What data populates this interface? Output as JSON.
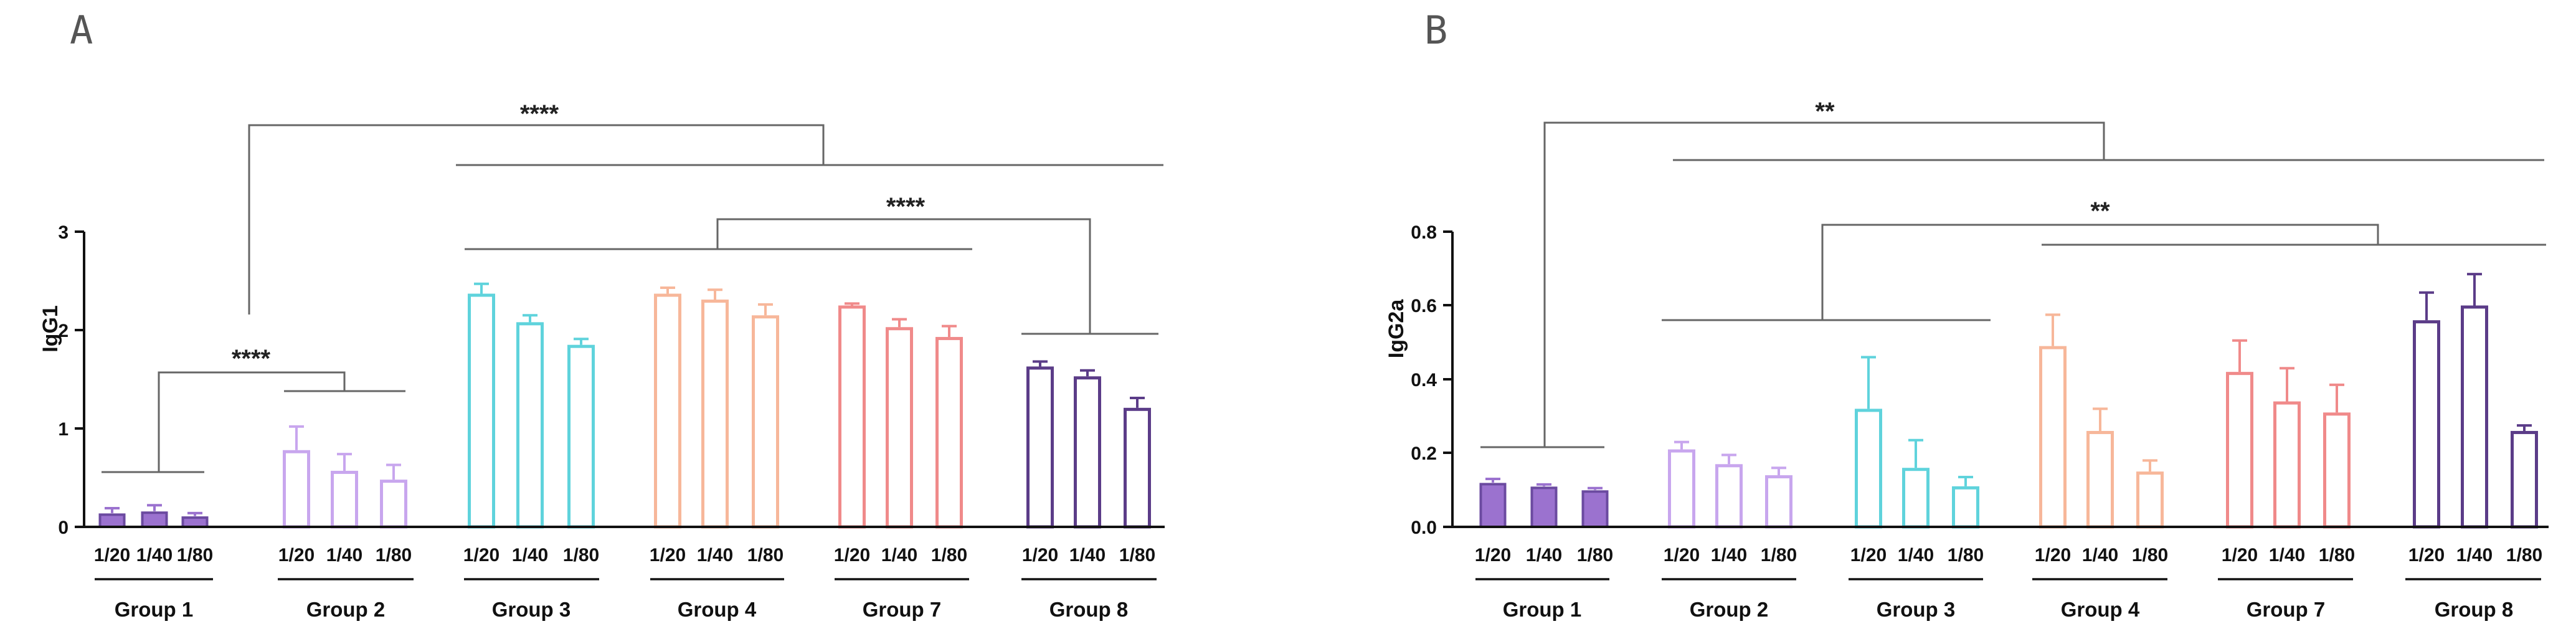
{
  "colors": {
    "group1": "#9b72cf",
    "group2": "#c8a6ee",
    "group3": "#5fd3dc",
    "group4": "#f7b79a",
    "group7": "#f08a8a",
    "group8": "#5b3c88"
  },
  "chart_data": [
    {
      "type": "bar",
      "panel": "A",
      "title": "",
      "xlabel": "",
      "ylabel": "IgG1",
      "ylim": [
        0,
        3
      ],
      "yticks": [
        "0",
        "1",
        "2",
        "3"
      ],
      "dilutions": [
        "1/20",
        "1/40",
        "1/80"
      ],
      "groups": [
        {
          "name": "Group 1",
          "color_key": "group1",
          "filled": true,
          "values": [
            0.14,
            0.16,
            0.11
          ],
          "errors": [
            0.05,
            0.06,
            0.03
          ]
        },
        {
          "name": "Group 2",
          "color_key": "group2",
          "filled": false,
          "values": [
            0.78,
            0.57,
            0.48
          ],
          "errors": [
            0.24,
            0.17,
            0.15
          ]
        },
        {
          "name": "Group 3",
          "color_key": "group3",
          "filled": false,
          "values": [
            2.37,
            2.08,
            1.85
          ],
          "errors": [
            0.1,
            0.07,
            0.06
          ]
        },
        {
          "name": "Group 4",
          "color_key": "group4",
          "filled": false,
          "values": [
            2.37,
            2.31,
            2.15
          ],
          "errors": [
            0.06,
            0.1,
            0.11
          ]
        },
        {
          "name": "Group 7",
          "color_key": "group7",
          "filled": false,
          "values": [
            2.25,
            2.03,
            1.93
          ],
          "errors": [
            0.02,
            0.08,
            0.11
          ]
        },
        {
          "name": "Group 8",
          "color_key": "group8",
          "filled": false,
          "values": [
            1.63,
            1.53,
            1.21
          ],
          "errors": [
            0.05,
            0.06,
            0.1
          ]
        }
      ],
      "annotations": [
        "****",
        "****",
        "****"
      ]
    },
    {
      "type": "bar",
      "panel": "B",
      "title": "",
      "xlabel": "",
      "ylabel": "IgG2a",
      "ylim": [
        0,
        0.8
      ],
      "yticks": [
        "0.0",
        "0.2",
        "0.4",
        "0.6",
        "0.8"
      ],
      "dilutions": [
        "1/20",
        "1/40",
        "1/80"
      ],
      "groups": [
        {
          "name": "Group 1",
          "color_key": "group1",
          "filled": true,
          "values": [
            0.12,
            0.11,
            0.1
          ],
          "errors": [
            0.01,
            0.005,
            0.005
          ]
        },
        {
          "name": "Group 2",
          "color_key": "group2",
          "filled": false,
          "values": [
            0.21,
            0.17,
            0.14
          ],
          "errors": [
            0.02,
            0.025,
            0.02
          ]
        },
        {
          "name": "Group 3",
          "color_key": "group3",
          "filled": false,
          "values": [
            0.32,
            0.16,
            0.11
          ],
          "errors": [
            0.14,
            0.075,
            0.025
          ]
        },
        {
          "name": "Group 4",
          "color_key": "group4",
          "filled": false,
          "values": [
            0.49,
            0.26,
            0.15
          ],
          "errors": [
            0.085,
            0.06,
            0.03
          ]
        },
        {
          "name": "Group 7",
          "color_key": "group7",
          "filled": false,
          "values": [
            0.42,
            0.34,
            0.31
          ],
          "errors": [
            0.085,
            0.09,
            0.075
          ]
        },
        {
          "name": "Group 8",
          "color_key": "group8",
          "filled": false,
          "values": [
            0.56,
            0.6,
            0.26
          ],
          "errors": [
            0.075,
            0.085,
            0.015
          ]
        }
      ],
      "annotations": [
        "**",
        "**"
      ]
    }
  ]
}
